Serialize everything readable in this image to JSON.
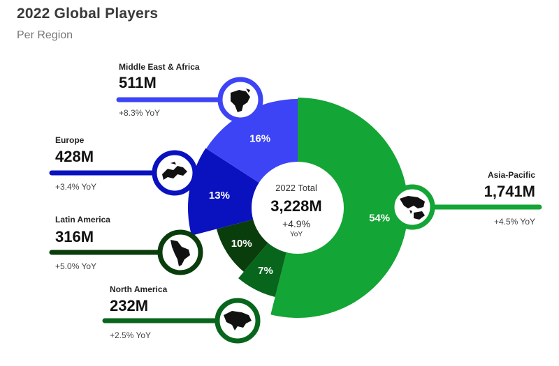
{
  "title": "2022 Global Players",
  "subtitle": "Per Region",
  "center": {
    "label": "2022 Total",
    "value": "3,228M",
    "change": "+4.9%",
    "change_label": "YoY"
  },
  "colors": {
    "asia_pacific": "#13a535",
    "north_america": "#07661c",
    "latin_america": "#0a3d0c",
    "europe": "#0a11bf",
    "middle_east_africa": "#3d44f6"
  },
  "icons": {
    "asia_pacific": "asia-pacific-map-icon",
    "north_america": "north-america-map-icon",
    "latin_america": "latin-america-map-icon",
    "europe": "europe-map-icon",
    "middle_east_africa": "africa-map-icon"
  },
  "regions": [
    {
      "key": "mea",
      "name": "Middle East & Africa",
      "value": "511M",
      "yoy": "+8.3% YoY"
    },
    {
      "key": "eu",
      "name": "Europe",
      "value": "428M",
      "yoy": "+3.4% YoY"
    },
    {
      "key": "la",
      "name": "Latin America",
      "value": "316M",
      "yoy": "+5.0% YoY"
    },
    {
      "key": "na",
      "name": "North America",
      "value": "232M",
      "yoy": "+2.5% YoY"
    },
    {
      "key": "ap",
      "name": "Asia-Pacific",
      "value": "1,741M",
      "yoy": "+4.5% YoY"
    }
  ],
  "chart_data": {
    "type": "pie",
    "title": "2022 Global Players",
    "subtitle": "Per Region",
    "unit": "M",
    "slices": [
      {
        "name": "Asia-Pacific",
        "value": 1741,
        "percent": 54,
        "label": "54%",
        "color": "#13a535"
      },
      {
        "name": "North America",
        "value": 232,
        "percent": 7,
        "label": "7%",
        "color": "#07661c"
      },
      {
        "name": "Latin America",
        "value": 316,
        "percent": 10,
        "label": "10%",
        "color": "#0a3d0c"
      },
      {
        "name": "Europe",
        "value": 428,
        "percent": 13,
        "label": "13%",
        "color": "#0a11bf"
      },
      {
        "name": "Middle East & Africa",
        "value": 511,
        "percent": 16,
        "label": "16%",
        "color": "#3d44f6"
      }
    ],
    "total": 3228
  }
}
